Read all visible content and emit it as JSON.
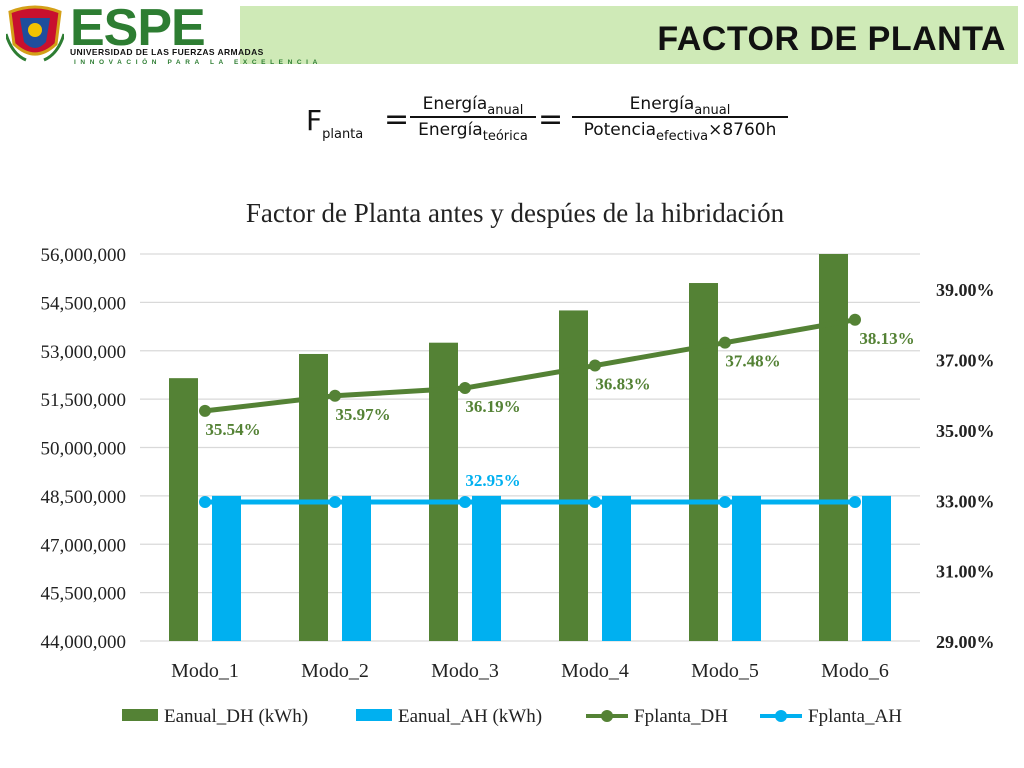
{
  "header": {
    "slide_title": "FACTOR DE PLANTA",
    "logo_word": "ESPE",
    "university": "UNIVERSIDAD DE LAS FUERZAS ARMADAS",
    "motto": "INNOVACIÓN PARA LA EXCELENCIA"
  },
  "formula": {
    "lhs": "F",
    "lhs_sub": "planta",
    "eq": "=",
    "num1": "Energía",
    "num1_sub": "anual",
    "den1": "Energía",
    "den1_sub": "teórica",
    "num2": "Energía",
    "num2_sub": "anual",
    "den2": "Potencia",
    "den2_sub": "efectiva",
    "den2_tail": "×8760h"
  },
  "colors": {
    "green": "#548235",
    "blue": "#00b0f0",
    "banner": "#cfeab7",
    "grid": "#d9d9d9"
  },
  "chart_data": {
    "type": "bar",
    "title": "Factor de Planta antes y despúes de la hibridación",
    "categories": [
      "Modo_1",
      "Modo_2",
      "Modo_3",
      "Modo_4",
      "Modo_5",
      "Modo_6"
    ],
    "y_left": {
      "min": 44000000,
      "max": 56000000,
      "ticks": [
        44000000,
        45500000,
        47000000,
        48500000,
        50000000,
        51500000,
        53000000,
        54500000,
        56000000
      ],
      "tick_labels": [
        "44,000,000",
        "45,500,000",
        "47,000,000",
        "48,500,000",
        "50,000,000",
        "51,500,000",
        "53,000,000",
        "54,500,000",
        "56,000,000"
      ]
    },
    "y_right": {
      "min": 29.0,
      "max": 40.0,
      "ticks": [
        29,
        31,
        33,
        35,
        37,
        39
      ],
      "tick_labels": [
        "29.00%",
        "31.00%",
        "33.00%",
        "35.00%",
        "37.00%",
        "39.00%"
      ]
    },
    "series": [
      {
        "name": "Eanual_DH (kWh)",
        "type": "bar",
        "axis": "left",
        "color": "#548235",
        "values": [
          52150000,
          52900000,
          53250000,
          54250000,
          55100000,
          56000000
        ]
      },
      {
        "name": "Eanual_AH (kWh)",
        "type": "bar",
        "axis": "left",
        "color": "#00b0f0",
        "values": [
          48500000,
          48500000,
          48500000,
          48500000,
          48500000,
          48500000
        ]
      },
      {
        "name": "Fplanta_DH",
        "type": "line",
        "axis": "right",
        "color": "#548235",
        "values": [
          35.54,
          35.97,
          36.19,
          36.83,
          37.48,
          38.13
        ],
        "labels": [
          "35.54%",
          "35.97%",
          "36.19%",
          "36.83%",
          "37.48%",
          "38.13%"
        ]
      },
      {
        "name": "Fplanta_AH",
        "type": "line",
        "axis": "right",
        "color": "#00b0f0",
        "values": [
          32.95,
          32.95,
          32.95,
          32.95,
          32.95,
          32.95
        ],
        "labels": [
          "",
          "",
          "32.95%",
          "",
          "",
          ""
        ]
      }
    ],
    "legend": "bottom",
    "grid": true
  }
}
